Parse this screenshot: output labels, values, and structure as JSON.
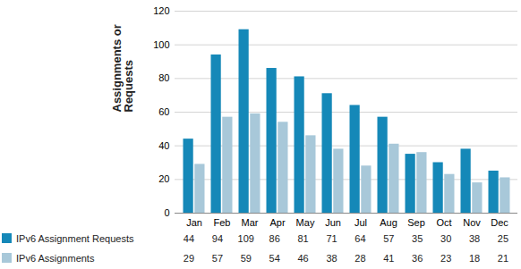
{
  "chart_data": {
    "type": "bar",
    "y_label": "Assignments or Requests",
    "categories": [
      "Jan",
      "Feb",
      "Mar",
      "Apr",
      "May",
      "Jun",
      "Jul",
      "Aug",
      "Sep",
      "Oct",
      "Nov",
      "Dec"
    ],
    "series": [
      {
        "name": "IPv6 Assignment Requests",
        "color": "#1588b8",
        "values": [
          44,
          94,
          109,
          86,
          81,
          71,
          64,
          57,
          35,
          30,
          38,
          25
        ]
      },
      {
        "name": "IPv6 Assignments",
        "color": "#a8c8d9",
        "values": [
          29,
          57,
          59,
          54,
          46,
          38,
          28,
          41,
          36,
          23,
          18,
          21
        ]
      }
    ],
    "ylim": [
      0,
      120
    ],
    "yticks": [
      0,
      20,
      40,
      60,
      80,
      100,
      120
    ],
    "grid": true,
    "legend": "bottom"
  }
}
